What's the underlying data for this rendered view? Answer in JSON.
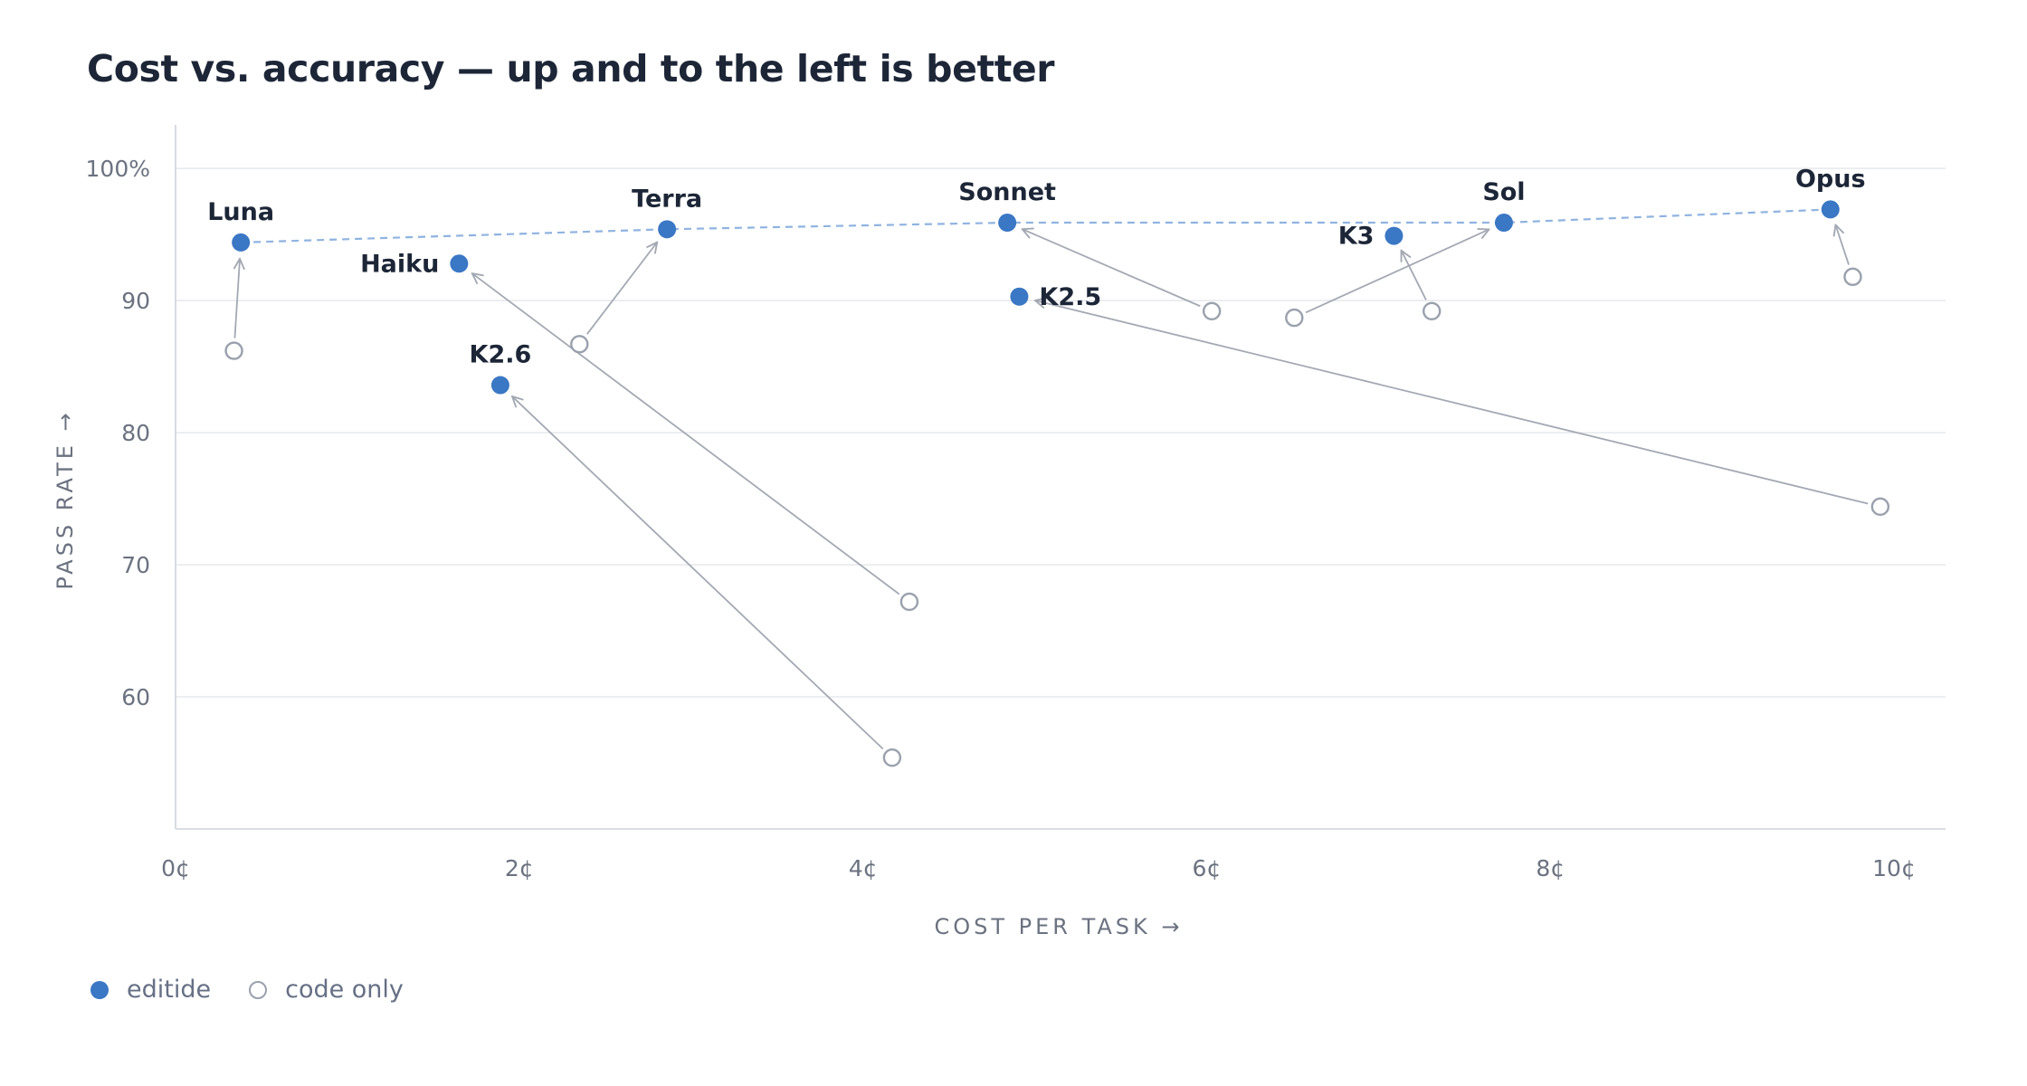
{
  "chart_data": {
    "type": "scatter",
    "title": "Cost vs. accuracy — up and to the left is better",
    "xlabel": "COST PER TASK →",
    "ylabel": "PASS RATE →",
    "xlim": [
      0,
      10.3
    ],
    "ylim": [
      50,
      103.3
    ],
    "x_ticks": [
      {
        "value": 0,
        "label": "0¢"
      },
      {
        "value": 2,
        "label": "2¢"
      },
      {
        "value": 4,
        "label": "4¢"
      },
      {
        "value": 6,
        "label": "6¢"
      },
      {
        "value": 8,
        "label": "8¢"
      },
      {
        "value": 10,
        "label": "10¢"
      }
    ],
    "y_ticks": [
      {
        "value": 60,
        "label": "60"
      },
      {
        "value": 70,
        "label": "70"
      },
      {
        "value": 80,
        "label": "80"
      },
      {
        "value": 90,
        "label": "90"
      },
      {
        "value": 100,
        "label": "100%"
      }
    ],
    "grid": true,
    "legend_position": "bottom-left",
    "colors": {
      "editide": "#3a77c4",
      "code_only": "#9aa1ad",
      "frontier": "#8fb3e0",
      "grid": "#e6e8ec"
    },
    "series": [
      {
        "name": "editide",
        "points": [
          {
            "label": "Luna",
            "x": 0.38,
            "y": 94.4,
            "label_pos": "above"
          },
          {
            "label": "Haiku",
            "x": 1.65,
            "y": 92.8,
            "label_pos": "left"
          },
          {
            "label": "K2.6",
            "x": 1.89,
            "y": 83.6,
            "label_pos": "above"
          },
          {
            "label": "Terra",
            "x": 2.86,
            "y": 95.4,
            "label_pos": "above"
          },
          {
            "label": "Sonnet",
            "x": 4.84,
            "y": 95.9,
            "label_pos": "above"
          },
          {
            "label": "K2.5",
            "x": 4.91,
            "y": 90.3,
            "label_pos": "right"
          },
          {
            "label": "K3",
            "x": 7.09,
            "y": 94.9,
            "label_pos": "left"
          },
          {
            "label": "Sol",
            "x": 7.73,
            "y": 95.9,
            "label_pos": "above"
          },
          {
            "label": "Opus",
            "x": 9.63,
            "y": 96.9,
            "label_pos": "above"
          }
        ]
      },
      {
        "name": "code only",
        "points": [
          {
            "label": "Luna",
            "x": 0.34,
            "y": 86.2
          },
          {
            "label": "Haiku",
            "x": 4.27,
            "y": 67.2
          },
          {
            "label": "K2.6",
            "x": 4.17,
            "y": 55.4
          },
          {
            "label": "Terra",
            "x": 2.35,
            "y": 86.7
          },
          {
            "label": "Sonnet",
            "x": 6.03,
            "y": 89.2
          },
          {
            "label": "K2.5",
            "x": 9.92,
            "y": 74.4
          },
          {
            "label": "K3",
            "x": 7.31,
            "y": 89.2
          },
          {
            "label": "Sol",
            "x": 6.51,
            "y": 88.7
          },
          {
            "label": "Opus",
            "x": 9.76,
            "y": 91.8
          }
        ]
      }
    ],
    "frontier": [
      "Luna",
      "Terra",
      "Sonnet",
      "Sol",
      "Opus"
    ]
  },
  "legend": {
    "editide_label": "editide",
    "code_only_label": "code only"
  }
}
